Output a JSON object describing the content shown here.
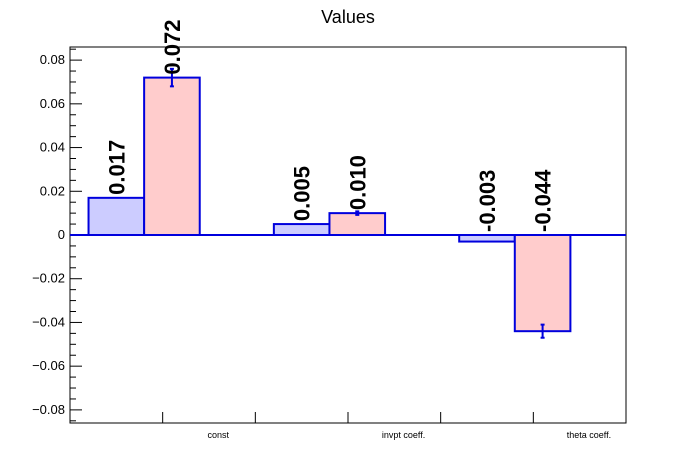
{
  "chart_data": {
    "type": "bar",
    "title": "Values",
    "categories": [
      "const",
      "invpt coeff.",
      "theta coeff."
    ],
    "ylim": [
      -0.086,
      0.086
    ],
    "yticks": [
      -0.08,
      -0.06,
      -0.04,
      -0.02,
      0,
      0.02,
      0.04,
      0.06,
      0.08
    ],
    "ytick_labels": [
      "−0.08",
      "−0.06",
      "−0.04",
      "−0.02",
      "0",
      "0.02",
      "0.04",
      "0.06",
      "0.08"
    ],
    "series": [
      {
        "values": [
          0.017,
          0.005,
          -0.003
        ],
        "labels": [
          "0.017",
          "0.005",
          "-0.003"
        ],
        "errors": [
          0,
          0,
          0
        ],
        "fill": "#ccccff",
        "stroke": "#0000dd"
      },
      {
        "values": [
          0.072,
          0.01,
          -0.044
        ],
        "labels": [
          "0.072",
          "0.010",
          "-0.044"
        ],
        "errors": [
          0.004,
          0.0008,
          0.003
        ],
        "fill": "#ffcccc",
        "stroke": "#0000dd"
      }
    ],
    "grid": false,
    "legend": "none"
  }
}
